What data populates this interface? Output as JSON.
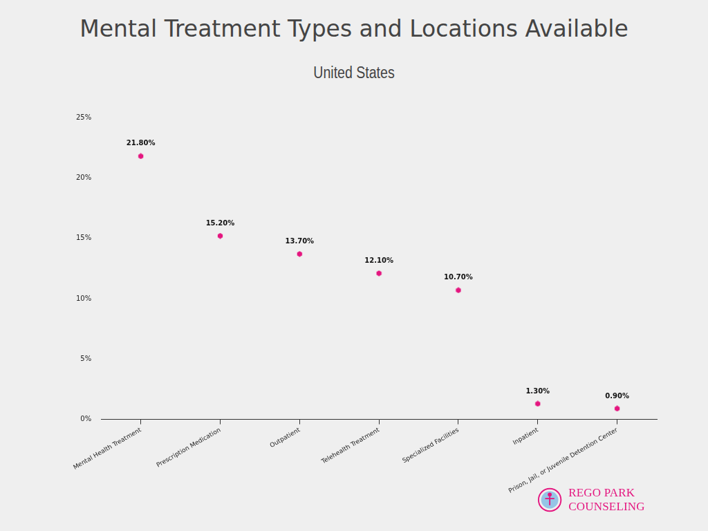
{
  "chart_data": {
    "type": "scatter",
    "title": "Mental Treatment Types and Locations Available",
    "subtitle": "United States",
    "categories": [
      "Mental Health Treatment",
      "Prescription Medication",
      "Outpatient",
      "Telehealth Treatment",
      "Specialized Facilities",
      "Inpatient",
      "Prison, Jail, or Juvenile Detention Center"
    ],
    "values": [
      21.8,
      15.2,
      13.7,
      12.1,
      10.7,
      1.3,
      0.9
    ],
    "value_labels": [
      "21.80%",
      "15.20%",
      "13.70%",
      "12.10%",
      "10.70%",
      "1.30%",
      "0.90%"
    ],
    "data_labels": true,
    "color": "#e4157f",
    "marker": "hexagon",
    "ylim": [
      0,
      25
    ],
    "yticks": [
      {
        "value": 0,
        "label": "0%"
      },
      {
        "value": 5,
        "label": "5%"
      },
      {
        "value": 10,
        "label": "10%"
      },
      {
        "value": 15,
        "label": "15%"
      },
      {
        "value": 20,
        "label": "20%"
      },
      {
        "value": 25,
        "label": "25%"
      }
    ],
    "grid": false,
    "annotations": [
      "REGO PARK COUNSELING"
    ]
  }
}
